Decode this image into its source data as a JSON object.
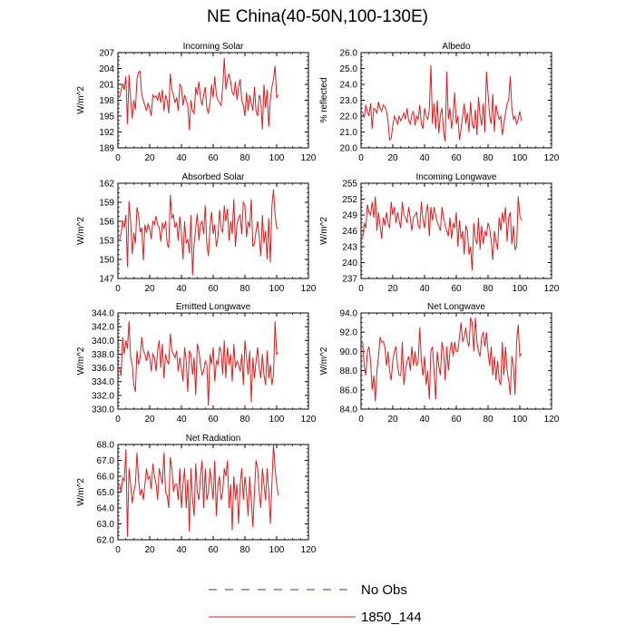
{
  "title": "NE China(40-50N,100-130E)",
  "legend": [
    {
      "label": "No Obs",
      "color": "#3a3a9a",
      "dash": true
    },
    {
      "label": "1850_144",
      "color": "#e41a1c",
      "dash": false
    }
  ],
  "chart_data": [
    {
      "type": "line",
      "title": "Incoming Solar",
      "ylabel": "W/m^2",
      "xlim": [
        0,
        120
      ],
      "xticks": [
        0,
        20,
        40,
        60,
        80,
        100,
        120
      ],
      "ylim": [
        189,
        207
      ],
      "yticks": [
        "189",
        "192",
        "195",
        "198",
        "201",
        "204",
        "207"
      ],
      "series": [
        {
          "x_start": 1,
          "values": [
            198.5,
            199.8,
            201.2,
            200.0,
            202.5,
            193.5,
            202.8,
            198.2,
            194.5,
            198.0,
            196.2,
            202.0,
            203.3,
            203.5,
            199.0,
            198.0,
            197.0,
            196.0,
            197.5,
            196.5,
            195.0,
            199.0,
            198.5,
            198.8,
            198.0,
            199.5,
            197.5,
            200.0,
            196.0,
            199.0,
            198.0,
            195.5,
            203.0,
            200.0,
            199.0,
            197.5,
            198.5,
            196.0,
            201.0,
            200.5,
            197.0,
            199.0,
            198.0,
            197.0,
            192.3,
            198.0,
            196.0,
            195.5,
            200.5,
            199.0,
            201.5,
            198.5,
            197.0,
            199.0,
            200.5,
            196.5,
            195.5,
            197.5,
            201.0,
            198.5,
            202.5,
            199.0,
            198.0,
            197.5,
            197.0,
            200.5,
            206.0,
            200.0,
            202.0,
            203.0,
            201.5,
            199.5,
            199.0,
            201.5,
            198.0,
            200.5,
            202.0,
            198.0,
            197.0,
            195.0,
            199.5,
            196.0,
            199.0,
            197.5,
            196.0,
            200.5,
            196.0,
            195.0,
            199.0,
            198.0,
            192.5,
            201.0,
            196.5,
            200.0,
            193.0,
            198.0,
            200.5,
            202.0,
            204.5,
            198.5,
            199.0
          ]
        }
      ]
    },
    {
      "type": "line",
      "title": "Albedo",
      "ylabel": "% reflected",
      "xlim": [
        0,
        120
      ],
      "xticks": [
        0,
        20,
        40,
        60,
        80,
        100,
        120
      ],
      "ylim": [
        20.0,
        26.0
      ],
      "yticks": [
        "20.0",
        "21.0",
        "22.0",
        "23.0",
        "24.0",
        "25.0",
        "26.0"
      ],
      "series": [
        {
          "x_start": 1,
          "values": [
            22.2,
            21.9,
            22.7,
            22.3,
            22.0,
            22.8,
            21.2,
            22.5,
            22.4,
            22.2,
            22.9,
            22.5,
            22.3,
            22.7,
            22.6,
            22.3,
            21.7,
            20.5,
            20.6,
            21.4,
            22.0,
            21.8,
            21.5,
            22.0,
            21.7,
            21.9,
            22.2,
            21.8,
            22.5,
            21.7,
            21.5,
            22.1,
            22.3,
            21.4,
            22.0,
            21.8,
            22.7,
            21.5,
            21.2,
            22.5,
            22.0,
            21.8,
            22.4,
            25.2,
            21.5,
            22.8,
            21.2,
            23.0,
            20.9,
            22.1,
            22.5,
            21.0,
            20.4,
            24.8,
            21.8,
            22.5,
            21.2,
            22.0,
            23.5,
            21.5,
            22.0,
            20.5,
            21.2,
            22.0,
            22.8,
            21.5,
            22.2,
            21.0,
            22.9,
            21.5,
            21.2,
            22.4,
            20.8,
            23.2,
            22.0,
            21.4,
            22.8,
            21.0,
            24.8,
            23.4,
            22.0,
            21.5,
            23.4,
            21.0,
            22.7,
            22.2,
            21.8,
            22.0,
            20.8,
            21.5,
            22.2,
            22.8,
            23.0,
            24.5,
            22.5,
            21.8,
            22.0,
            21.5,
            21.8,
            22.3,
            21.7
          ]
        }
      ]
    },
    {
      "type": "line",
      "title": "Absorbed Solar",
      "ylabel": "W/m^2",
      "xlim": [
        0,
        120
      ],
      "xticks": [
        0,
        20,
        40,
        60,
        80,
        100,
        120
      ],
      "ylim": [
        147,
        162
      ],
      "yticks": [
        "147",
        "150",
        "153",
        "156",
        "159",
        "162"
      ],
      "series": [
        {
          "x_start": 1,
          "values": [
            153.2,
            154.0,
            156.2,
            155.0,
            157.0,
            148.8,
            159.2,
            156.0,
            150.8,
            154.2,
            152.5,
            158.2,
            157.0,
            154.3,
            155.0,
            149.8,
            155.5,
            154.2,
            155.5,
            154.8,
            153.2,
            156.0,
            155.5,
            156.8,
            155.5,
            155.0,
            152.8,
            155.8,
            154.8,
            156.0,
            152.5,
            151.8,
            160.2,
            156.5,
            157.0,
            155.0,
            155.8,
            153.0,
            156.8,
            154.0,
            150.0,
            156.0,
            152.5,
            153.2,
            151.0,
            157.0,
            147.5,
            152.5,
            155.0,
            157.2,
            153.0,
            155.5,
            156.0,
            154.0,
            158.5,
            152.5,
            150.5,
            155.0,
            157.5,
            154.0,
            155.5,
            152.0,
            153.5,
            157.8,
            155.0,
            154.2,
            158.5,
            156.0,
            158.0,
            153.0,
            156.0,
            154.0,
            159.5,
            152.0,
            155.5,
            156.5,
            157.0,
            154.0,
            159.0,
            158.5,
            153.5,
            156.0,
            155.0,
            159.5,
            152.0,
            152.5,
            154.5,
            156.0,
            153.5,
            150.5,
            157.0,
            152.5,
            154.5,
            150.0,
            156.5,
            149.5,
            158.5,
            161.0,
            157.0,
            155.0,
            154.8
          ]
        }
      ]
    },
    {
      "type": "line",
      "title": "Incoming Longwave",
      "ylabel": "W/m^2",
      "xlim": [
        0,
        120
      ],
      "xticks": [
        0,
        20,
        40,
        60,
        80,
        100,
        120
      ],
      "ylim": [
        237,
        255
      ],
      "yticks": [
        "237",
        "240",
        "243",
        "246",
        "249",
        "252",
        "255"
      ],
      "series": [
        {
          "x_start": 1,
          "values": [
            244.5,
            247.5,
            246.5,
            251.0,
            249.5,
            249.0,
            251.5,
            248.5,
            252.5,
            246.0,
            249.5,
            247.0,
            244.5,
            248.5,
            247.0,
            249.5,
            247.5,
            246.5,
            251.5,
            249.0,
            250.5,
            247.5,
            249.5,
            248.0,
            246.5,
            251.5,
            249.0,
            248.5,
            247.5,
            250.5,
            248.5,
            246.0,
            248.5,
            249.0,
            249.5,
            247.0,
            246.5,
            251.5,
            248.0,
            246.5,
            249.5,
            251.0,
            245.0,
            250.5,
            248.0,
            250.5,
            249.0,
            247.5,
            247.0,
            246.0,
            250.5,
            248.5,
            247.0,
            246.0,
            245.0,
            248.5,
            244.5,
            247.5,
            246.5,
            249.5,
            243.0,
            248.0,
            244.5,
            246.0,
            241.5,
            247.0,
            246.0,
            241.5,
            243.0,
            238.5,
            247.5,
            244.5,
            243.5,
            248.5,
            242.5,
            247.0,
            243.5,
            246.0,
            245.0,
            247.5,
            246.5,
            244.0,
            240.5,
            246.0,
            244.0,
            242.5,
            248.5,
            246.0,
            249.5,
            247.5,
            250.5,
            244.0,
            248.5,
            249.5,
            243.5,
            247.0,
            242.5,
            243.0,
            252.5,
            249.0,
            248.0
          ]
        }
      ]
    },
    {
      "type": "line",
      "title": "Emitted Longwave",
      "ylabel": "W/m^2",
      "xlim": [
        0,
        120
      ],
      "xticks": [
        0,
        20,
        40,
        60,
        80,
        100,
        120
      ],
      "ylim": [
        330.0,
        344.0
      ],
      "yticks": [
        "330.0",
        "332.0",
        "334.0",
        "336.0",
        "338.0",
        "340.0",
        "342.0",
        "344.0"
      ],
      "series": [
        {
          "x_start": 1,
          "values": [
            336.0,
            334.8,
            340.5,
            338.0,
            340.0,
            338.8,
            342.8,
            337.5,
            336.5,
            333.5,
            332.5,
            338.5,
            336.5,
            337.5,
            340.5,
            338.5,
            338.0,
            337.0,
            338.5,
            337.5,
            335.5,
            338.0,
            337.5,
            335.5,
            338.5,
            340.0,
            336.0,
            339.5,
            334.5,
            338.0,
            337.0,
            336.5,
            341.0,
            338.5,
            338.0,
            337.5,
            338.5,
            335.5,
            337.5,
            336.0,
            334.0,
            339.0,
            337.0,
            332.5,
            338.5,
            338.0,
            335.0,
            337.5,
            332.0,
            339.5,
            338.5,
            336.5,
            335.0,
            335.5,
            337.0,
            336.5,
            330.5,
            338.0,
            336.5,
            339.0,
            334.0,
            337.0,
            336.5,
            339.0,
            338.5,
            335.0,
            340.0,
            334.5,
            339.0,
            336.5,
            338.0,
            334.0,
            339.5,
            336.0,
            337.0,
            336.5,
            335.5,
            338.0,
            333.5,
            340.0,
            337.5,
            335.0,
            338.5,
            331.0,
            337.5,
            334.5,
            337.0,
            339.0,
            336.0,
            334.5,
            338.0,
            335.0,
            333.5,
            338.5,
            334.5,
            336.5,
            333.5,
            335.0,
            342.8,
            338.0,
            338.2
          ]
        }
      ]
    },
    {
      "type": "line",
      "title": "Net Longwave",
      "ylabel": "W/m^2",
      "xlim": [
        0,
        120
      ],
      "xticks": [
        0,
        20,
        40,
        60,
        80,
        100,
        120
      ],
      "ylim": [
        84.0,
        94.0
      ],
      "yticks": [
        "84.0",
        "86.0",
        "88.0",
        "90.0",
        "92.0",
        "94.0"
      ],
      "series": [
        {
          "x_start": 1,
          "values": [
            91.0,
            88.5,
            87.5,
            90.0,
            90.5,
            89.0,
            86.0,
            87.5,
            84.8,
            88.0,
            89.5,
            91.5,
            91.0,
            91.0,
            90.5,
            88.5,
            90.0,
            88.0,
            87.0,
            89.0,
            90.0,
            90.5,
            88.5,
            87.5,
            87.5,
            91.0,
            86.5,
            88.0,
            89.0,
            89.5,
            88.0,
            90.5,
            88.5,
            90.0,
            88.5,
            89.0,
            92.5,
            89.0,
            87.5,
            89.5,
            86.5,
            88.0,
            85.0,
            90.0,
            90.5,
            88.0,
            85.0,
            90.0,
            88.5,
            87.5,
            91.0,
            90.0,
            87.0,
            90.5,
            88.0,
            90.0,
            91.0,
            89.5,
            91.0,
            90.0,
            90.0,
            91.5,
            93.0,
            91.0,
            91.5,
            92.5,
            91.0,
            90.5,
            93.5,
            93.0,
            90.0,
            93.5,
            91.0,
            90.0,
            89.5,
            91.5,
            92.0,
            90.5,
            92.0,
            90.0,
            88.5,
            90.5,
            87.5,
            89.5,
            87.0,
            89.0,
            87.0,
            86.5,
            91.0,
            87.5,
            90.5,
            88.0,
            87.0,
            85.5,
            89.5,
            88.5,
            85.5,
            91.0,
            92.8,
            89.5,
            89.8
          ]
        }
      ]
    },
    {
      "type": "line",
      "title": "Net Radiation",
      "ylabel": "W/m^2",
      "xlim": [
        0,
        120
      ],
      "xticks": [
        0,
        20,
        40,
        60,
        80,
        100,
        120
      ],
      "ylim": [
        62.0,
        68.0
      ],
      "yticks": [
        "62.0",
        "63.0",
        "64.0",
        "65.0",
        "66.0",
        "67.0",
        "68.0"
      ],
      "series": [
        {
          "x_start": 1,
          "values": [
            65.5,
            65.0,
            65.9,
            65.7,
            67.7,
            62.2,
            66.5,
            65.5,
            64.3,
            65.0,
            65.5,
            67.5,
            65.8,
            64.8,
            65.2,
            64.5,
            65.5,
            66.5,
            65.8,
            66.0,
            65.2,
            66.8,
            66.0,
            65.5,
            64.5,
            66.5,
            66.0,
            65.5,
            67.5,
            65.0,
            64.8,
            64.0,
            67.2,
            66.5,
            65.0,
            65.5,
            65.5,
            64.5,
            66.5,
            64.0,
            65.5,
            66.5,
            64.0,
            65.8,
            62.5,
            66.5,
            64.5,
            63.5,
            66.8,
            65.0,
            64.5,
            66.0,
            67.0,
            64.0,
            66.5,
            64.5,
            65.0,
            66.5,
            65.5,
            64.5,
            67.0,
            63.5,
            65.5,
            66.0,
            64.5,
            65.0,
            66.5,
            66.0,
            67.0,
            64.0,
            65.5,
            62.6,
            66.0,
            64.5,
            65.5,
            63.0,
            65.5,
            66.5,
            64.5,
            66.0,
            65.0,
            63.5,
            66.0,
            64.5,
            62.8,
            65.0,
            67.0,
            66.5,
            65.0,
            64.0,
            66.5,
            65.5,
            64.5,
            66.5,
            65.0,
            63.0,
            65.5,
            68.0,
            66.5,
            65.5,
            64.8
          ]
        }
      ]
    }
  ]
}
